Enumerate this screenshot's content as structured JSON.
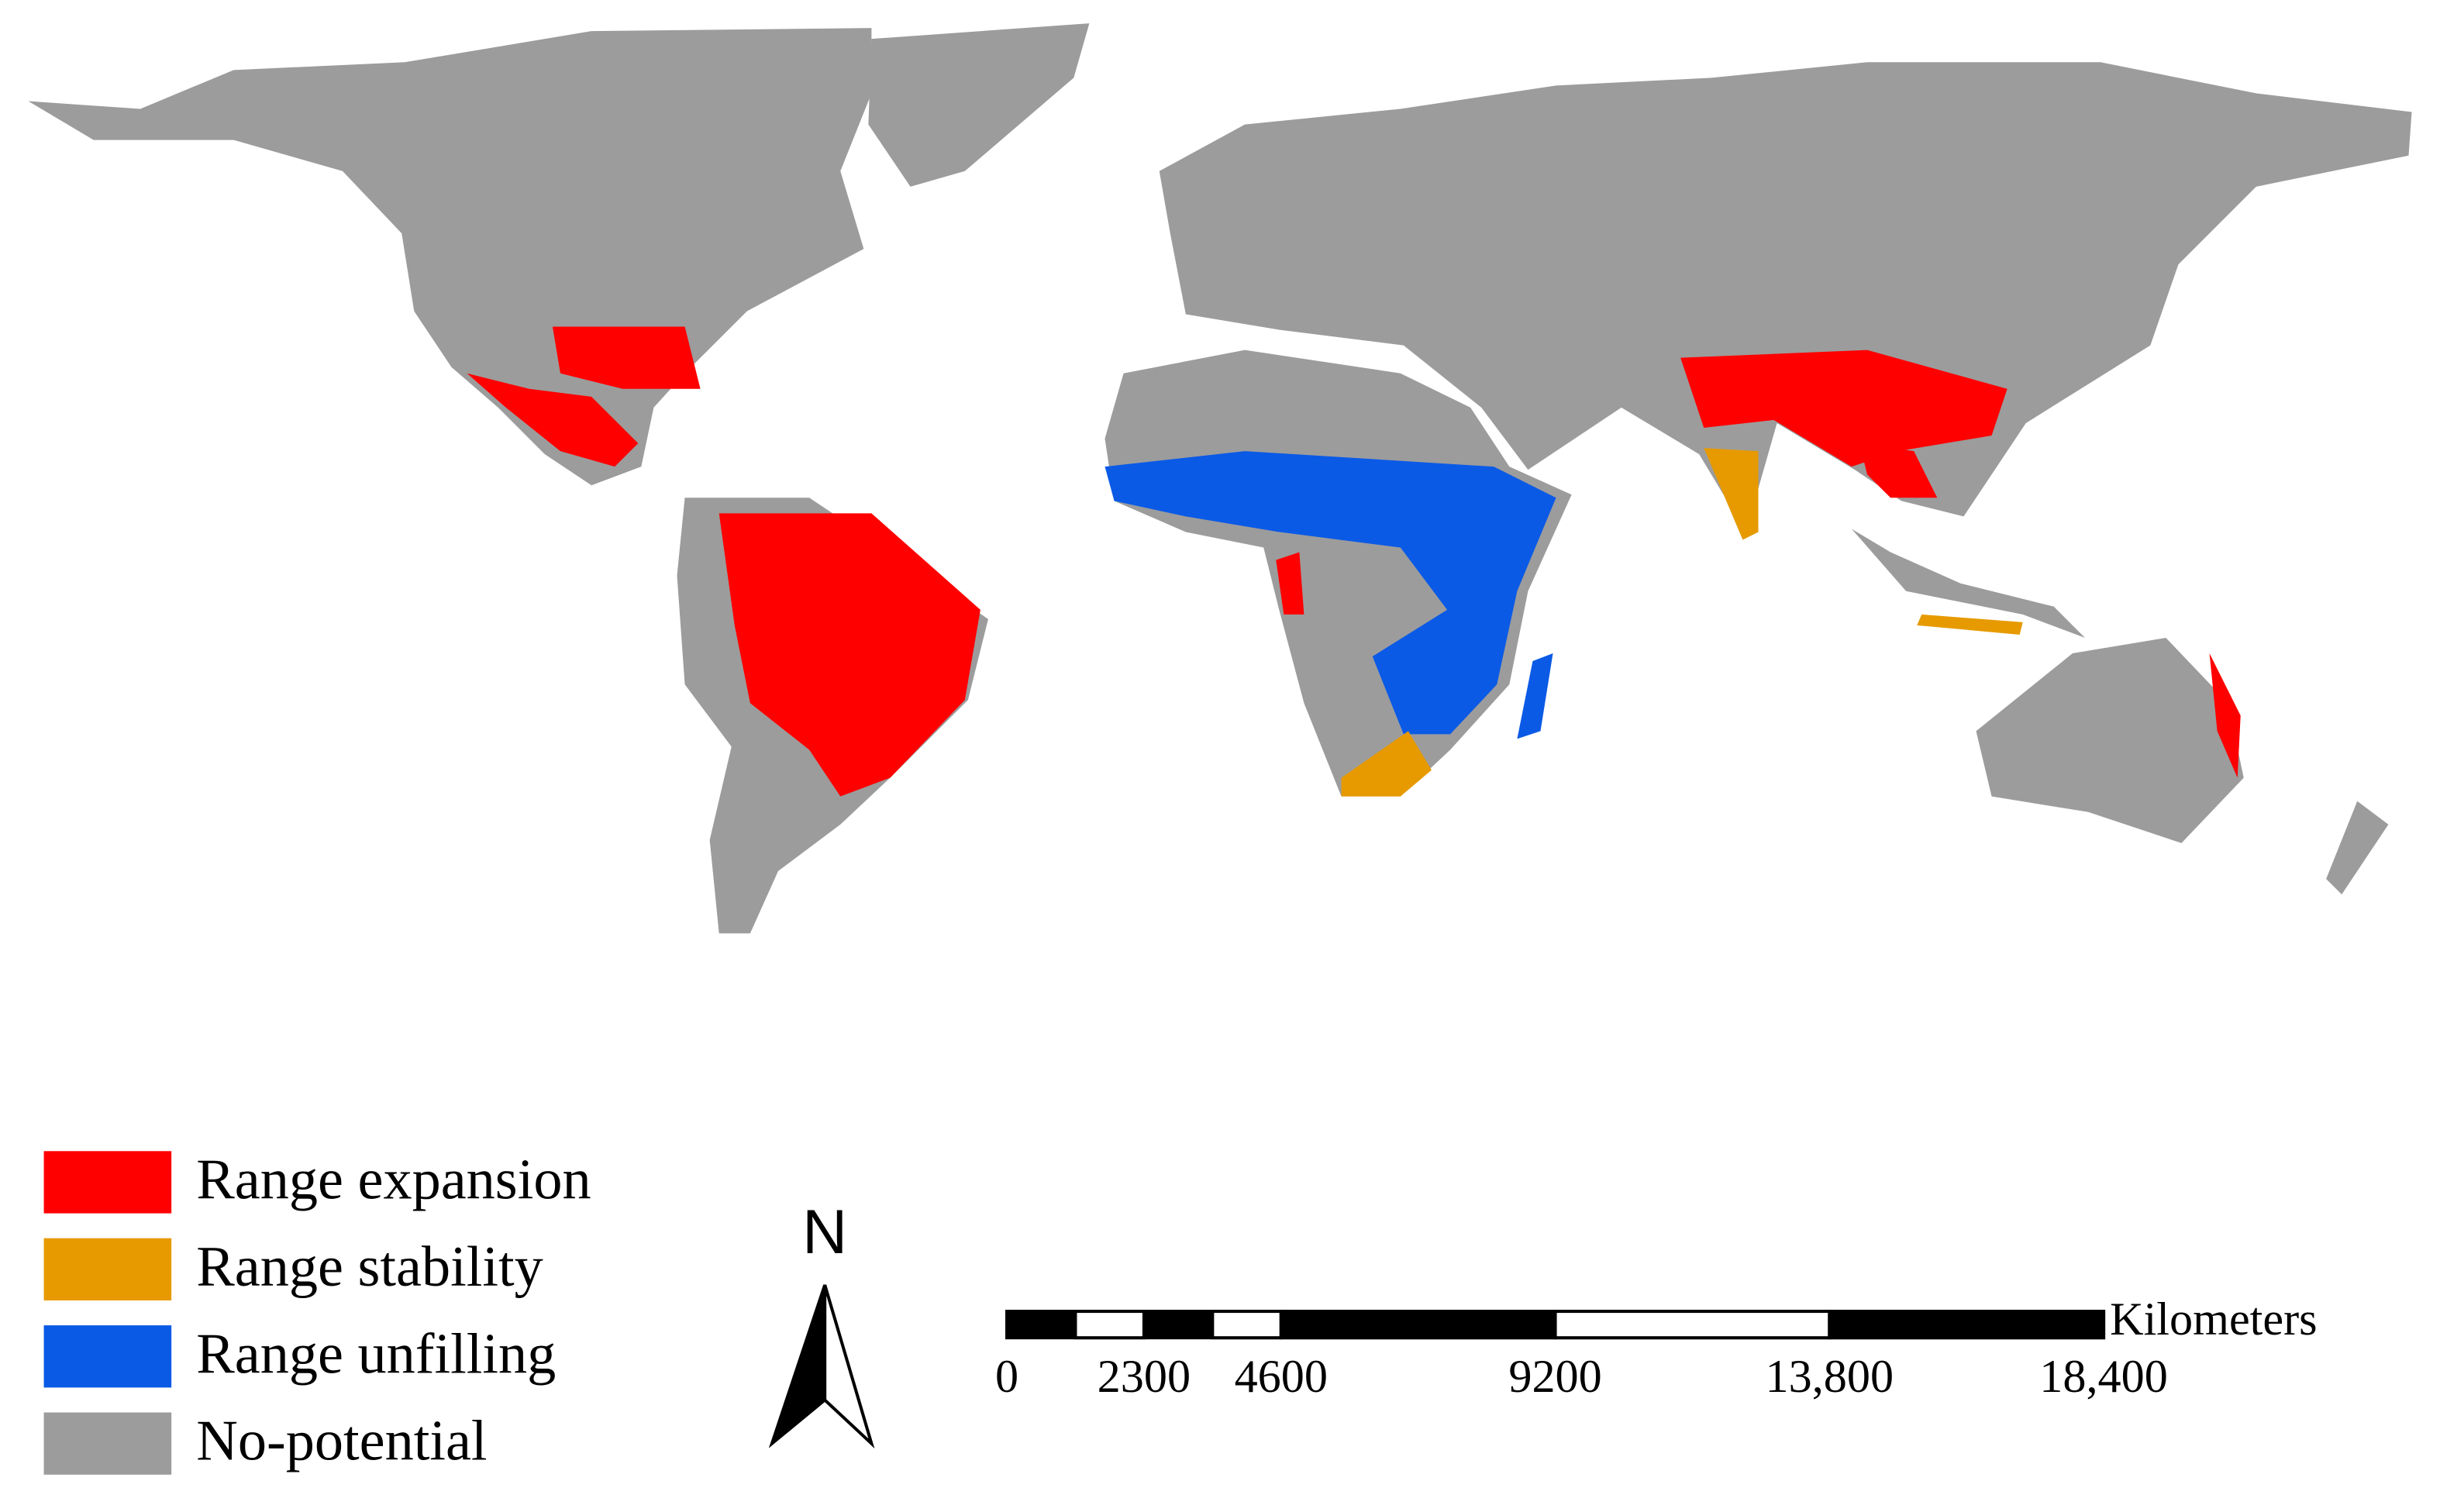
{
  "legend": {
    "items": [
      {
        "label": "Range expansion",
        "color": "#ff0000"
      },
      {
        "label": "Range stability",
        "color": "#e69a00"
      },
      {
        "label": "Range unfilling",
        "color": "#0a5ae6"
      },
      {
        "label": "No-potential",
        "color": "#9c9c9c"
      }
    ]
  },
  "north_arrow": {
    "label": "N"
  },
  "scale_bar": {
    "unit": "Kilometers",
    "ticks": [
      0,
      2300,
      4600,
      9200,
      {
        "value": 13800,
        "label": "13,800"
      },
      {
        "value": 18400,
        "label": "18,400"
      }
    ]
  }
}
